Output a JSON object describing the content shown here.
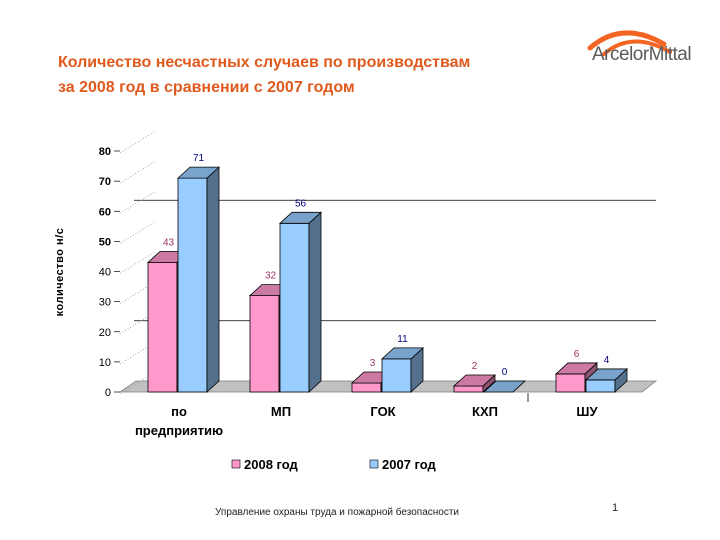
{
  "slide": {
    "title_line1": "Количество несчастных случаев по производствам",
    "title_line2": "за 2008 год в сравнении с 2007 годом",
    "logo_text": "ArcelorMittal",
    "footer": "Управление охраны труда и пожарной безопасности",
    "page_number": "1"
  },
  "chart_data": {
    "type": "bar",
    "title": "Количество несчастных случаев по производствам за 2008 год в сравнении с 2007 годом",
    "ylabel": "количество н/с",
    "xlabel": "",
    "categories": [
      "по предприятию",
      "МП",
      "ГОК",
      "КХП",
      "ШУ"
    ],
    "series": [
      {
        "name": "2008 год",
        "values": [
          43,
          32,
          3,
          2,
          6
        ],
        "color": "#ff99cc",
        "label_color": "#993366"
      },
      {
        "name": "2007 год",
        "values": [
          71,
          56,
          11,
          0,
          4
        ],
        "color": "#99ccff",
        "label_color": "#000080"
      }
    ],
    "ylim": [
      0,
      80
    ],
    "yticks": [
      0,
      10,
      20,
      30,
      40,
      50,
      60,
      70,
      80
    ],
    "bold_ticks": [
      50,
      60,
      70,
      80
    ],
    "legend_position": "bottom",
    "floor_color": "#c0c0c0",
    "reference_lines": [
      20,
      60
    ]
  }
}
